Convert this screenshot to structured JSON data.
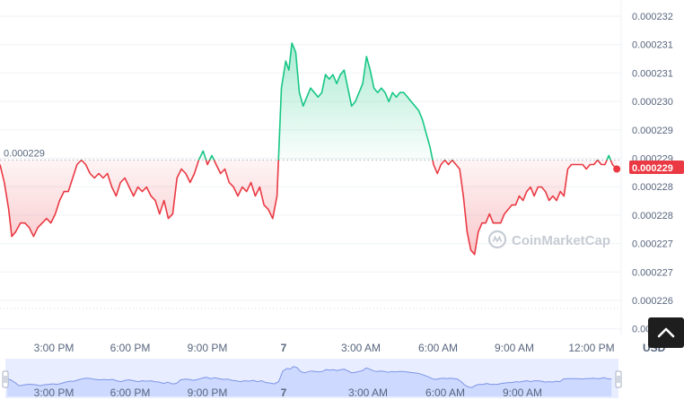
{
  "chart_data": {
    "type": "area",
    "baseline_value": 0.000229,
    "baseline_label": "0.000229",
    "current_value_label": "0.000229",
    "watermark": "CoinMarketCap",
    "currency_label": "USD",
    "ylim": [
      0.0002253,
      0.0002322
    ],
    "y_tick_labels": [
      "0.000232",
      "0.000231",
      "0.000231",
      "0.000230",
      "0.000229",
      "0.000229",
      "0.000228",
      "0.000228",
      "0.000227",
      "0.000227",
      "0.000226",
      "0.000226"
    ],
    "x_tick_labels": [
      "3:00 PM",
      "6:00 PM",
      "9:00 PM",
      "7",
      "3:00 AM",
      "6:00 AM",
      "9:00 AM",
      "12:00 PM"
    ],
    "navigator_tick_labels": [
      "3:00 PM",
      "6:00 PM",
      "9:00 PM",
      "7",
      "3:00 AM",
      "6:00 AM",
      "9:00 AM"
    ],
    "colors": {
      "up": "#16c784",
      "down": "#ea3943",
      "grid": "#eff2f5",
      "baseline": "#b6bdc8",
      "navigator": "#cdd9ff"
    },
    "x_range": [
      0,
      100
    ],
    "points": [
      [
        0,
        0.0002289
      ],
      [
        0.7,
        0.0002285
      ],
      [
        1.4,
        0.0002279
      ],
      [
        1.9,
        0.0002273
      ],
      [
        2.5,
        0.0002274
      ],
      [
        3.3,
        0.0002276
      ],
      [
        4.0,
        0.0002276
      ],
      [
        4.7,
        0.0002275
      ],
      [
        5.4,
        0.0002273
      ],
      [
        6.1,
        0.0002275
      ],
      [
        6.8,
        0.0002276
      ],
      [
        7.5,
        0.0002277
      ],
      [
        8.2,
        0.0002276
      ],
      [
        8.9,
        0.0002278
      ],
      [
        9.6,
        0.0002281
      ],
      [
        10.3,
        0.0002283
      ],
      [
        11.0,
        0.0002283
      ],
      [
        11.7,
        0.0002286
      ],
      [
        12.4,
        0.0002289
      ],
      [
        13.1,
        0.000229
      ],
      [
        13.8,
        0.0002289
      ],
      [
        14.5,
        0.0002287
      ],
      [
        15.2,
        0.0002286
      ],
      [
        15.9,
        0.0002287
      ],
      [
        16.6,
        0.0002286
      ],
      [
        17.3,
        0.0002287
      ],
      [
        18.0,
        0.0002284
      ],
      [
        18.7,
        0.0002282
      ],
      [
        19.4,
        0.0002285
      ],
      [
        20.1,
        0.0002286
      ],
      [
        20.8,
        0.0002284
      ],
      [
        21.5,
        0.0002282
      ],
      [
        22.2,
        0.0002284
      ],
      [
        22.9,
        0.0002283
      ],
      [
        23.6,
        0.0002284
      ],
      [
        24.3,
        0.0002282
      ],
      [
        25.0,
        0.0002281
      ],
      [
        25.7,
        0.0002278
      ],
      [
        26.4,
        0.0002281
      ],
      [
        27.1,
        0.0002277
      ],
      [
        27.8,
        0.0002278
      ],
      [
        28.5,
        0.0002286
      ],
      [
        29.2,
        0.0002288
      ],
      [
        29.9,
        0.0002287
      ],
      [
        30.6,
        0.0002285
      ],
      [
        31.3,
        0.0002287
      ],
      [
        32.0,
        0.000229
      ],
      [
        32.7,
        0.0002292
      ],
      [
        33.4,
        0.0002289
      ],
      [
        34.1,
        0.0002291
      ],
      [
        34.8,
        0.0002289
      ],
      [
        35.5,
        0.0002287
      ],
      [
        36.2,
        0.0002288
      ],
      [
        36.9,
        0.0002285
      ],
      [
        37.6,
        0.0002284
      ],
      [
        38.3,
        0.0002282
      ],
      [
        39.0,
        0.0002284
      ],
      [
        39.7,
        0.0002283
      ],
      [
        40.4,
        0.0002285
      ],
      [
        41.1,
        0.0002282
      ],
      [
        41.8,
        0.0002284
      ],
      [
        42.5,
        0.000228
      ],
      [
        43.2,
        0.0002279
      ],
      [
        43.9,
        0.0002277
      ],
      [
        44.6,
        0.0002282
      ],
      [
        45.3,
        0.0002306
      ],
      [
        46.0,
        0.0002312
      ],
      [
        46.5,
        0.000231
      ],
      [
        47.0,
        0.0002316
      ],
      [
        47.6,
        0.0002314
      ],
      [
        48.2,
        0.0002305
      ],
      [
        48.8,
        0.0002302
      ],
      [
        49.4,
        0.0002304
      ],
      [
        50.0,
        0.0002306
      ],
      [
        50.6,
        0.0002305
      ],
      [
        51.2,
        0.0002304
      ],
      [
        51.8,
        0.0002305
      ],
      [
        52.4,
        0.0002309
      ],
      [
        53.0,
        0.0002308
      ],
      [
        53.6,
        0.0002309
      ],
      [
        54.2,
        0.0002307
      ],
      [
        54.8,
        0.0002309
      ],
      [
        55.4,
        0.000231
      ],
      [
        56.0,
        0.0002306
      ],
      [
        56.6,
        0.0002302
      ],
      [
        57.2,
        0.0002303
      ],
      [
        57.8,
        0.0002305
      ],
      [
        58.4,
        0.0002307
      ],
      [
        59.0,
        0.0002313
      ],
      [
        59.6,
        0.000231
      ],
      [
        60.2,
        0.0002306
      ],
      [
        60.8,
        0.0002305
      ],
      [
        61.4,
        0.0002306
      ],
      [
        62.0,
        0.0002305
      ],
      [
        62.6,
        0.0002303
      ],
      [
        63.2,
        0.0002305
      ],
      [
        63.8,
        0.0002304
      ],
      [
        64.4,
        0.0002305
      ],
      [
        65.0,
        0.0002305
      ],
      [
        65.6,
        0.0002304
      ],
      [
        66.2,
        0.0002303
      ],
      [
        66.8,
        0.0002302
      ],
      [
        67.4,
        0.0002301
      ],
      [
        68.0,
        0.0002299
      ],
      [
        68.6,
        0.0002296
      ],
      [
        69.2,
        0.0002293
      ],
      [
        69.8,
        0.0002289
      ],
      [
        70.4,
        0.0002287
      ],
      [
        71.0,
        0.0002289
      ],
      [
        71.6,
        0.000229
      ],
      [
        72.2,
        0.0002289
      ],
      [
        72.8,
        0.000229
      ],
      [
        73.4,
        0.0002289
      ],
      [
        74.0,
        0.0002288
      ],
      [
        74.6,
        0.0002282
      ],
      [
        75.2,
        0.0002274
      ],
      [
        75.8,
        0.000227
      ],
      [
        76.4,
        0.0002269
      ],
      [
        77.0,
        0.0002274
      ],
      [
        77.6,
        0.0002276
      ],
      [
        78.2,
        0.0002276
      ],
      [
        78.8,
        0.0002278
      ],
      [
        79.4,
        0.0002276
      ],
      [
        80.0,
        0.0002276
      ],
      [
        80.6,
        0.0002276
      ],
      [
        81.2,
        0.0002278
      ],
      [
        81.8,
        0.0002279
      ],
      [
        82.4,
        0.000228
      ],
      [
        83.0,
        0.000228
      ],
      [
        83.6,
        0.0002282
      ],
      [
        84.2,
        0.0002281
      ],
      [
        84.8,
        0.0002283
      ],
      [
        85.4,
        0.0002284
      ],
      [
        86.0,
        0.0002282
      ],
      [
        86.6,
        0.0002284
      ],
      [
        87.2,
        0.0002284
      ],
      [
        87.8,
        0.0002283
      ],
      [
        88.4,
        0.0002281
      ],
      [
        89.0,
        0.0002282
      ],
      [
        89.6,
        0.0002281
      ],
      [
        90.2,
        0.0002283
      ],
      [
        90.8,
        0.0002282
      ],
      [
        91.4,
        0.0002288
      ],
      [
        92.0,
        0.0002289
      ],
      [
        92.6,
        0.0002289
      ],
      [
        93.2,
        0.0002289
      ],
      [
        93.8,
        0.0002289
      ],
      [
        94.4,
        0.0002288
      ],
      [
        95.0,
        0.0002289
      ],
      [
        95.6,
        0.0002289
      ],
      [
        96.2,
        0.000229
      ],
      [
        96.8,
        0.0002289
      ],
      [
        97.4,
        0.0002289
      ],
      [
        98.0,
        0.0002291
      ],
      [
        98.6,
        0.0002289
      ],
      [
        99.3,
        0.0002288
      ]
    ]
  }
}
